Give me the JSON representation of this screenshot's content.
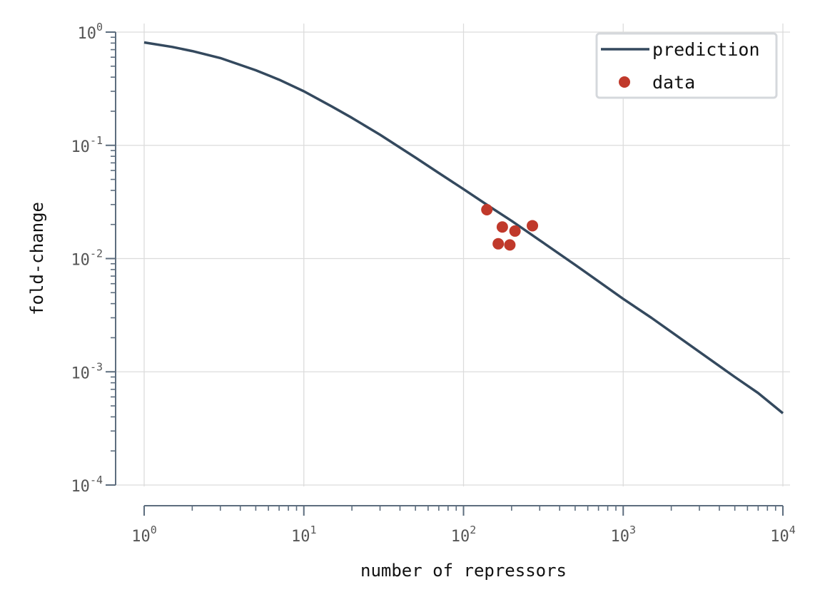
{
  "chart_data": {
    "type": "line",
    "xlabel": "number of repressors",
    "ylabel": "fold-change",
    "xscale": "log",
    "yscale": "log",
    "xlim": [
      1,
      10000
    ],
    "ylim": [
      0.0001,
      1
    ],
    "grid": true,
    "legend_position": "top-right",
    "x_ticks": [
      {
        "base": "10",
        "exp": "0",
        "value": 1
      },
      {
        "base": "10",
        "exp": "1",
        "value": 10
      },
      {
        "base": "10",
        "exp": "2",
        "value": 100
      },
      {
        "base": "10",
        "exp": "3",
        "value": 1000
      },
      {
        "base": "10",
        "exp": "4",
        "value": 10000
      }
    ],
    "y_ticks": [
      {
        "base": "10",
        "exp": "0",
        "value": 1
      },
      {
        "base": "10",
        "exp": "-1",
        "value": 0.1
      },
      {
        "base": "10",
        "exp": "-2",
        "value": 0.01
      },
      {
        "base": "10",
        "exp": "-3",
        "value": 0.001
      },
      {
        "base": "10",
        "exp": "-4",
        "value": 0.0001
      }
    ],
    "series": [
      {
        "name": "prediction",
        "kind": "line",
        "color": "#34495e",
        "x": [
          1,
          1.5,
          2,
          3,
          5,
          7,
          10,
          15,
          20,
          30,
          50,
          70,
          100,
          150,
          200,
          300,
          500,
          700,
          1000,
          1500,
          2000,
          3000,
          5000,
          7000,
          10000
        ],
        "y": [
          0.81,
          0.74,
          0.68,
          0.59,
          0.46,
          0.38,
          0.3,
          0.22,
          0.175,
          0.124,
          0.078,
          0.057,
          0.041,
          0.028,
          0.0215,
          0.0145,
          0.0088,
          0.0063,
          0.0044,
          0.003,
          0.00225,
          0.0015,
          0.0009,
          0.00065,
          0.00043
        ]
      },
      {
        "name": "data",
        "kind": "scatter",
        "color": "#c0392b",
        "x": [
          140,
          165,
          175,
          195,
          210,
          270
        ],
        "y": [
          0.027,
          0.0135,
          0.019,
          0.0132,
          0.0175,
          0.0195
        ]
      }
    ]
  }
}
